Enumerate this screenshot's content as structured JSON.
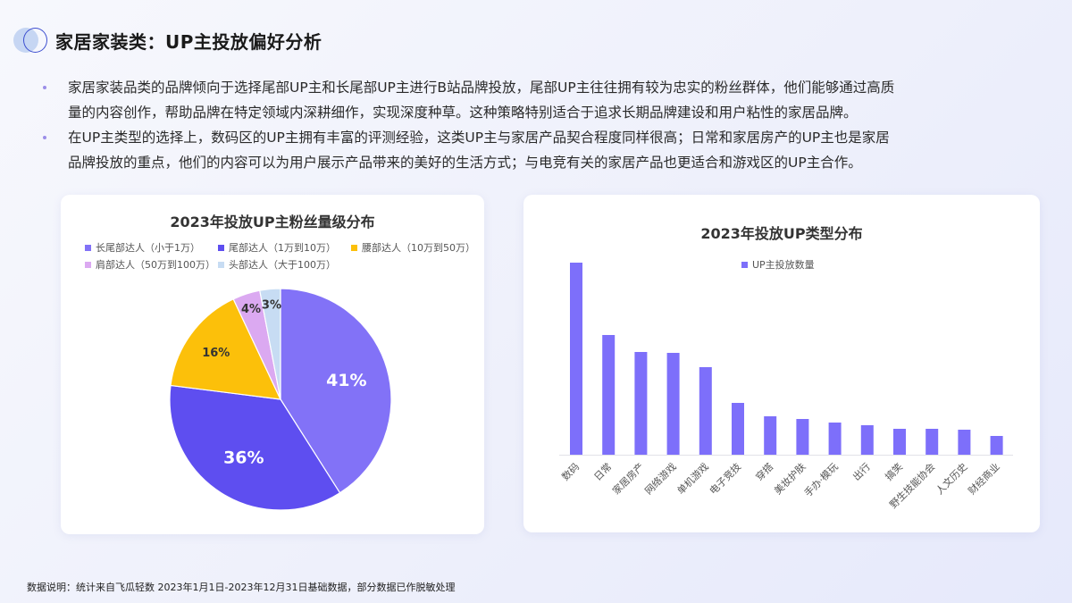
{
  "header": {
    "title": "家居家装类：UP主投放偏好分析"
  },
  "bullets": [
    {
      "lines": [
        "家居家装品类的品牌倾向于选择尾部UP主和长尾部UP主进行B站品牌投放，尾部UP主往往拥有较为忠实的粉丝群体，他们能够通过高质",
        "量的内容创作，帮助品牌在特定领域内深耕细作，实现深度种草。这种策略特别适合于追求长期品牌建设和用户粘性的家居品牌。"
      ]
    },
    {
      "lines": [
        "在UP主类型的选择上，数码区的UP主拥有丰富的评测经验，这类UP主与家居产品契合程度同样很高；日常和家居房产的UP主也是家居",
        "品牌投放的重点，他们的内容可以为用户展示产品带来的美好的生活方式；与电竞有关的家居产品也更适合和游戏区的UP主合作。"
      ]
    }
  ],
  "footer": {
    "note": "数据说明：统计来自飞瓜轻数 2023年1月1日-2023年12月31日基础数据，部分数据已作脱敏处理"
  },
  "colors": {
    "accent": "#7b6ef6",
    "bar": "#7d6ffa"
  },
  "chart_data": [
    {
      "type": "pie",
      "title": "2023年投放UP主粉丝量级分布",
      "legend_position": "top",
      "categories": [
        "长尾部达人（小于1万）",
        "尾部达人（1万到10万）",
        "腰部达人（10万到50万）",
        "肩部达人（50万到100万）",
        "头部达人（大于100万）"
      ],
      "values": [
        41,
        36,
        16,
        4,
        3
      ],
      "labels": [
        "41%",
        "36%",
        "16%",
        "4%",
        "3%"
      ],
      "colors": [
        "#8272f7",
        "#5e4ef0",
        "#fcc00a",
        "#dba9f1",
        "#c7dcf3"
      ],
      "label_colors": [
        "#ffffff",
        "#ffffff",
        "#333333",
        "#333333",
        "#333333"
      ]
    },
    {
      "type": "bar",
      "title": "2023年投放UP类型分布",
      "legend": [
        "UP主投放数量"
      ],
      "legend_position": "top",
      "grid": false,
      "xlabel": "",
      "ylabel": "",
      "categories": [
        "数码",
        "日常",
        "家居房产",
        "网络游戏",
        "单机游戏",
        "电子竞技",
        "穿搭",
        "美妆护肤",
        "手办·模玩",
        "出行",
        "搞笑",
        "野生技能协会",
        "人文历史",
        "财经商业"
      ],
      "values": [
        215,
        134,
        115,
        114,
        98,
        58,
        43,
        40,
        36,
        33,
        29,
        29,
        28,
        21
      ],
      "ylim": [
        0,
        215
      ]
    }
  ]
}
